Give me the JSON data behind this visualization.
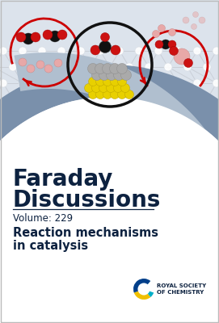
{
  "fig_width": 2.71,
  "fig_height": 4.0,
  "dpi": 100,
  "bg_color": "#ffffff",
  "top_bg_color": "#dce3ec",
  "arc_dark_color": "#7a90ab",
  "arc_light_color": "#b0bfcf",
  "title_text_line1": "Faraday",
  "title_text_line2": "Discussions",
  "title_color": "#0d2240",
  "volume_text": "Volume: 229",
  "volume_color": "#0d2240",
  "subtitle_line1": "Reaction mechanisms",
  "subtitle_line2": "in catalysis",
  "subtitle_color": "#0d2240",
  "rsc_text1": "ROYAL SOCIETY",
  "rsc_text2": "OF CHEMISTRY",
  "rsc_color": "#0d2240",
  "border_color": "#bbbbbb",
  "red_arrow": "#cc0000",
  "black_mol": "#111111",
  "red_mol": "#cc1111",
  "pink_mol": "#e8a8a8",
  "yellow_atom": "#e8d000",
  "grey_atom": "#aaaaaa",
  "lattice_node": "#d8dde5",
  "lattice_bond": "#c8cdd5"
}
